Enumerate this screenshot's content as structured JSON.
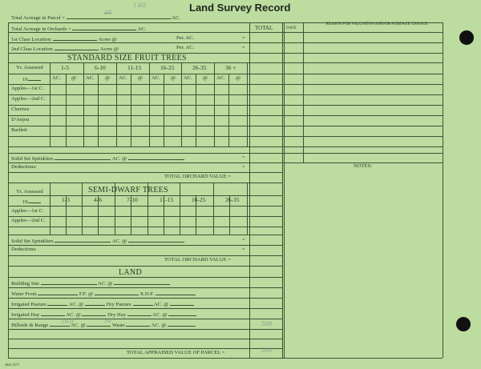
{
  "title": "Land Survey Record",
  "parcel": {
    "label": "Total Acreage in Parcel =",
    "unit": "AC.",
    "handwritten_value": "10",
    "handwritten_note": "1.60"
  },
  "right_columns": {
    "total": "TOTAL",
    "date": "DATE",
    "reason": "REASON FOR VALUATION AND/OR ACREAGE CHANGE",
    "notes": "NOTES:"
  },
  "orchard": {
    "total_acreage": "Total Acreage in Orchards =",
    "ac": "AC.",
    "first_class": "1st Class Location:",
    "second_class": "2nd Class Location:",
    "acres_at": "Acres @",
    "per_ac": "Per. AC.",
    "eq": "="
  },
  "standard": {
    "title": "STANDARD SIZE FRUIT TREES",
    "yr_assessed": "Yr. Assessed",
    "year_prefix": "19",
    "age_groups": [
      "1-5",
      "6-10",
      "11-15",
      "16-25",
      "26-35",
      "36 +"
    ],
    "sub_ac": "AC.",
    "sub_at": "@",
    "varieties": [
      "Apples—1st C.",
      "Apples—2nd C.",
      "Cherries",
      "D'Anjou",
      "Bartlett"
    ],
    "sprinklers": "Solid Set Sprinklers",
    "ac_at": "AC. @",
    "deductions": "Deductions:",
    "total": "TOTAL ORCHARD VALUE ="
  },
  "semi_dwarf": {
    "title": "SEMI-DWARF TREES",
    "yr_assessed": "Yr. Assessed",
    "year_prefix": "19",
    "age_groups": [
      "1-3",
      "4-6",
      "7-10",
      "11-15",
      "16-25",
      "26-35"
    ],
    "varieties": [
      "Apples—1st C.",
      "Apples—2nd C."
    ],
    "sprinklers": "Solid Set Sprinklers",
    "ac_at": "AC. @",
    "deductions": "Deductions:",
    "total": "TOTAL ORCHARD VALUE ="
  },
  "land": {
    "title": "LAND",
    "building_site": "Building Site",
    "ac_at": "AC. @",
    "water_front": "Water Front",
    "ff_at": "F.F. @",
    "xdf": "X.D.F.",
    "irrigated_pasture": "Irrigated Pasture",
    "dry_pasture": "Dry Pasture",
    "irrigated_hay": "Irrigated Hay",
    "dry_hay": "Dry Hay",
    "hillside": "Hillside & Range",
    "hillside_acres": "10.0",
    "hillside_rate": "50",
    "hillside_total": "500",
    "waste": "Waste",
    "total_label": "TOTAL APPRAISED VALUE OF PARCEL =",
    "total_value": "500"
  },
  "form_code": "2844 12/77"
}
